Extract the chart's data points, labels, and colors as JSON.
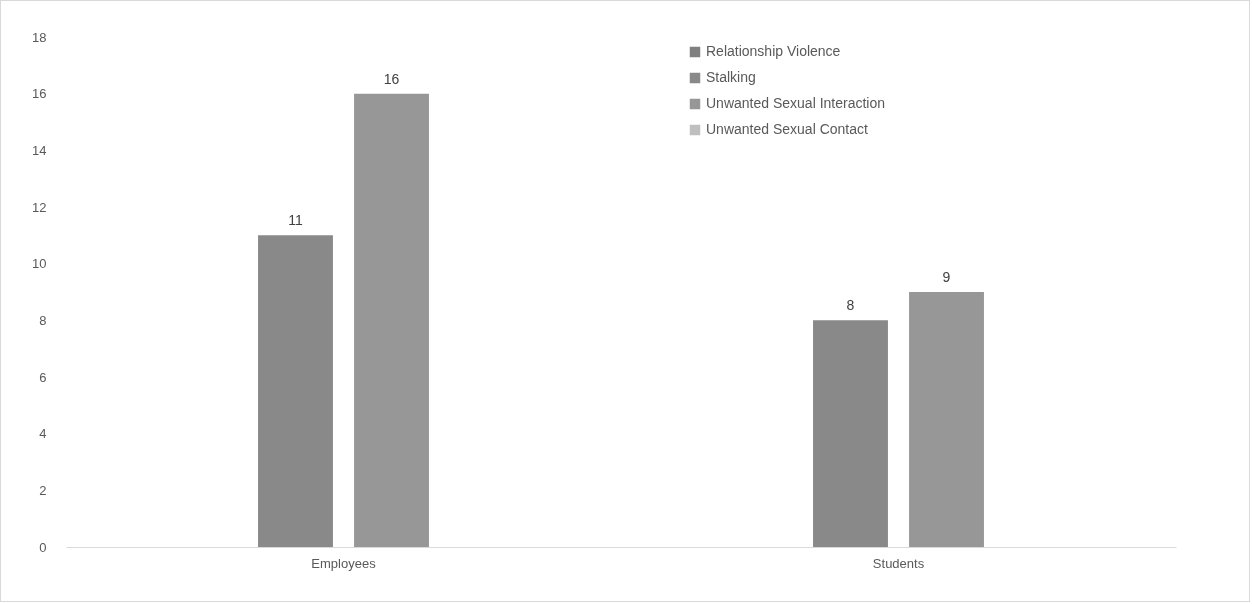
{
  "chart_data": {
    "type": "bar",
    "categories": [
      "Employees",
      "Students"
    ],
    "series": [
      {
        "name": "Relationship Violence",
        "color": "#7f7f7f",
        "values": [
          null,
          null
        ]
      },
      {
        "name": "Stalking",
        "color": "#898989",
        "values": [
          11,
          8
        ]
      },
      {
        "name": "Unwanted Sexual Interaction",
        "color": "#979797",
        "values": [
          16,
          9
        ]
      },
      {
        "name": "Unwanted Sexual Contact",
        "color": "#bfbfbf",
        "values": [
          null,
          null
        ]
      }
    ],
    "ylim": [
      0,
      18
    ],
    "yticks": [
      0,
      2,
      4,
      6,
      8,
      10,
      12,
      14,
      16,
      18
    ],
    "grid": false,
    "legend": "top right",
    "data_labels": true
  }
}
